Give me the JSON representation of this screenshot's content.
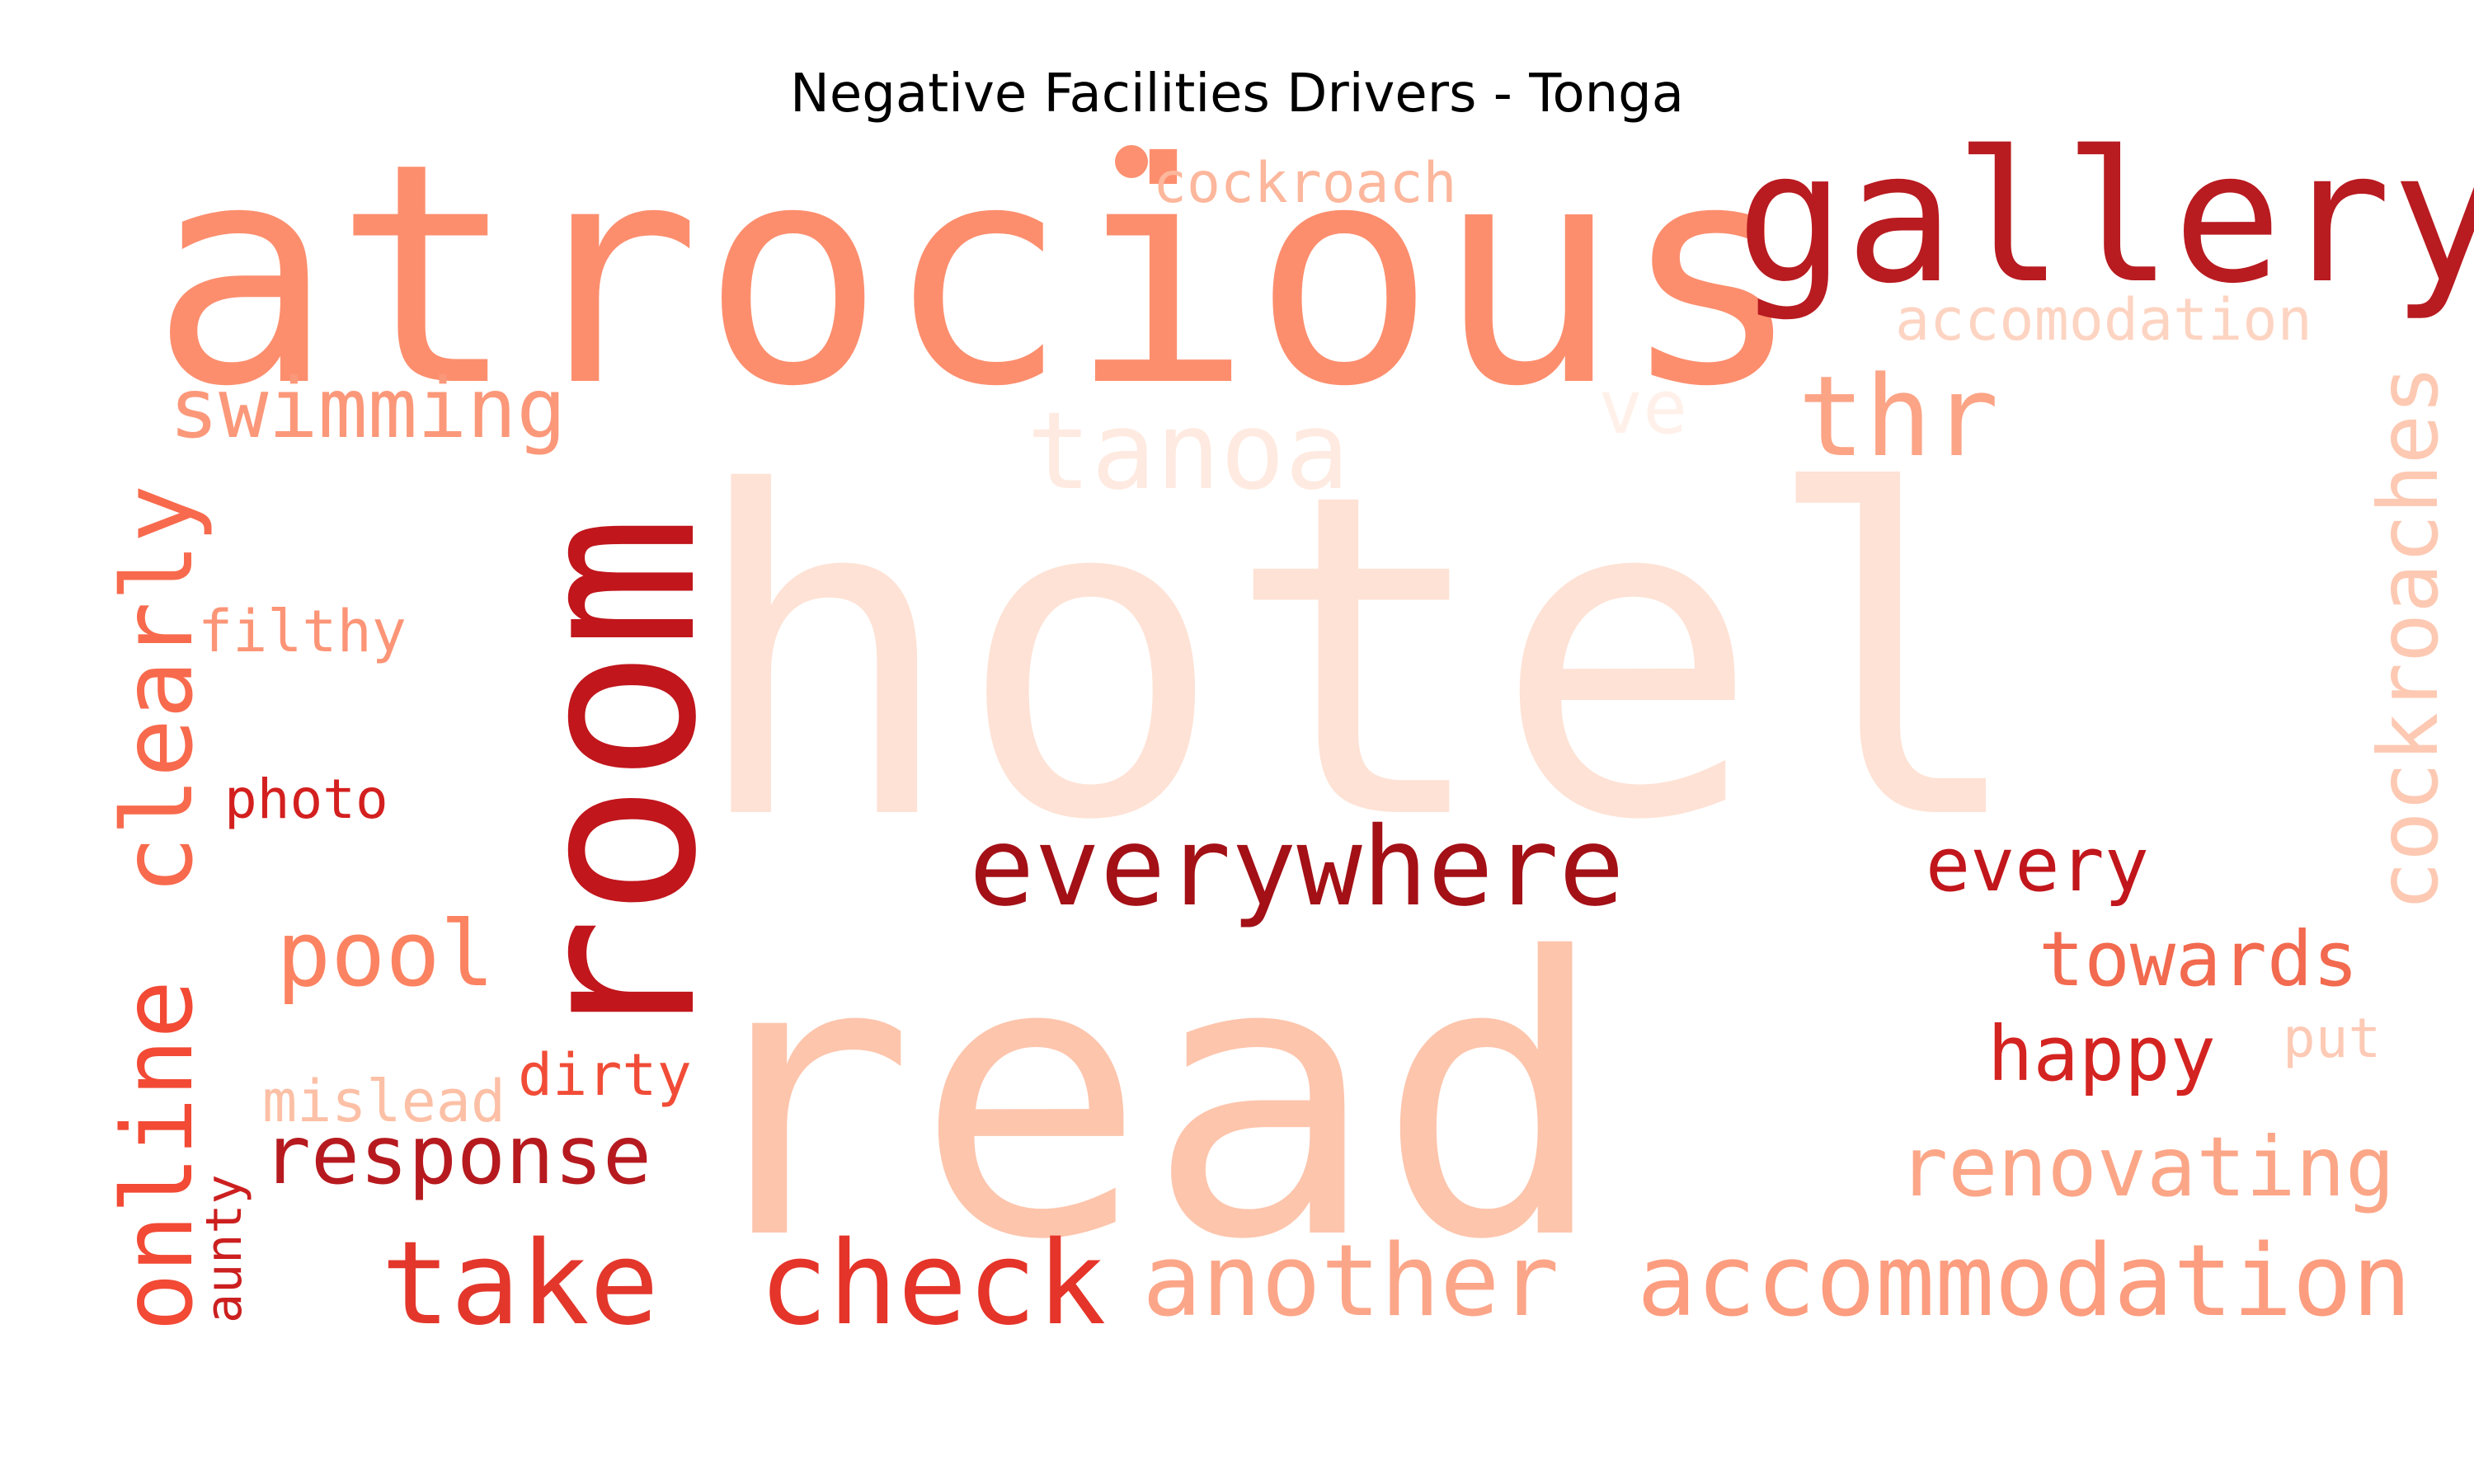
{
  "title": "Negative Facilities Drivers - Tonga",
  "words": [
    {
      "text": "hotel",
      "color": "#fee2d5"
    },
    {
      "text": "read",
      "color": "#fdc5ac"
    },
    {
      "text": "atrocious",
      "color": "#fc8e6e"
    },
    {
      "text": "gallery",
      "color": "#b81b20"
    },
    {
      "text": "room",
      "color": "#c0161c"
    },
    {
      "text": "everywhere",
      "color": "#a31016"
    },
    {
      "text": "tanoa",
      "color": "#feeae0"
    },
    {
      "text": "thr",
      "color": "#fca486"
    },
    {
      "text": "swimming",
      "color": "#fb987a"
    },
    {
      "text": "cockroach",
      "color": "#fcb79c"
    },
    {
      "text": "accomodation",
      "color": "#fdd4c2"
    },
    {
      "text": "ve",
      "color": "#fff1ea"
    },
    {
      "text": "cockroaches",
      "color": "#fdc9b3"
    },
    {
      "text": "every",
      "color": "#c1161c"
    },
    {
      "text": "towards",
      "color": "#f26a4f"
    },
    {
      "text": "happy",
      "color": "#d42421"
    },
    {
      "text": "put",
      "color": "#fdcab5"
    },
    {
      "text": "renovating",
      "color": "#fca688"
    },
    {
      "text": "accommodation",
      "color": "#fc9d7f"
    },
    {
      "text": "another",
      "color": "#fca689"
    },
    {
      "text": "check",
      "color": "#e53429"
    },
    {
      "text": "take",
      "color": "#e3372c"
    },
    {
      "text": "response",
      "color": "#b61a1f"
    },
    {
      "text": "dirty",
      "color": "#f14c37"
    },
    {
      "text": "mislead",
      "color": "#fcc0a6"
    },
    {
      "text": "aunty",
      "color": "#cc1f1f"
    },
    {
      "text": "pool",
      "color": "#fb8362"
    },
    {
      "text": "photo",
      "color": "#d3201f"
    },
    {
      "text": "filthy",
      "color": "#fc9577"
    },
    {
      "text": "clearly",
      "color": "#f86a4d"
    },
    {
      "text": "online",
      "color": "#f24a35"
    }
  ]
}
